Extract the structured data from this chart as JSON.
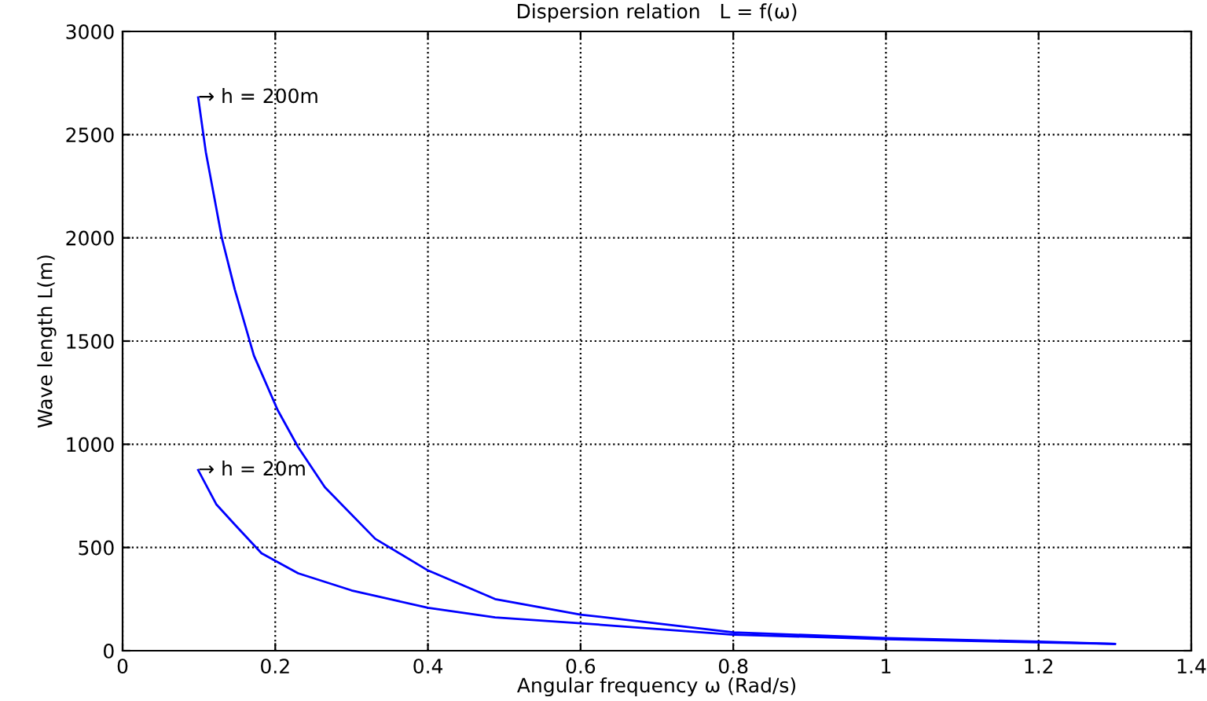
{
  "chart_data": {
    "type": "line",
    "title": "Dispersion relation   L = f(ω)",
    "xlabel": "Angular frequency ω (Rad/s)",
    "ylabel": "Wave length L(m)",
    "series": [
      {
        "color": "#0000ff",
        "x": [
          0.099,
          0.109,
          0.13,
          0.147,
          0.172,
          0.203,
          0.23,
          0.265,
          0.331,
          0.4,
          0.488,
          0.6,
          0.8,
          1.0,
          1.2,
          1.3
        ],
        "values": [
          2680,
          2417,
          2000,
          1750,
          1430,
          1167,
          986,
          792,
          542,
          389,
          250,
          175,
          89,
          61,
          44,
          33
        ]
      },
      {
        "color": "#0000ff",
        "x": [
          0.099,
          0.123,
          0.147,
          0.182,
          0.23,
          0.3,
          0.4,
          0.488,
          0.6,
          0.8,
          1.0,
          1.3
        ],
        "values": [
          875,
          708,
          611,
          472,
          375,
          292,
          208,
          161,
          133,
          78,
          56,
          33
        ]
      }
    ],
    "annotations": [
      {
        "text": "→ h = 200m",
        "x": 0.099,
        "y": 2680
      },
      {
        "text": "→ h = 20m",
        "x": 0.099,
        "y": 875
      }
    ],
    "xlim": [
      0,
      1.4
    ],
    "xticks": [
      0,
      0.2,
      0.4,
      0.6,
      0.8,
      1,
      1.2,
      1.4
    ],
    "ylim": [
      0,
      3000
    ],
    "yticks": [
      0,
      500,
      1000,
      1500,
      2000,
      2500,
      3000
    ],
    "grid": true,
    "line_style": "solid",
    "marker": "none",
    "legend": false
  }
}
